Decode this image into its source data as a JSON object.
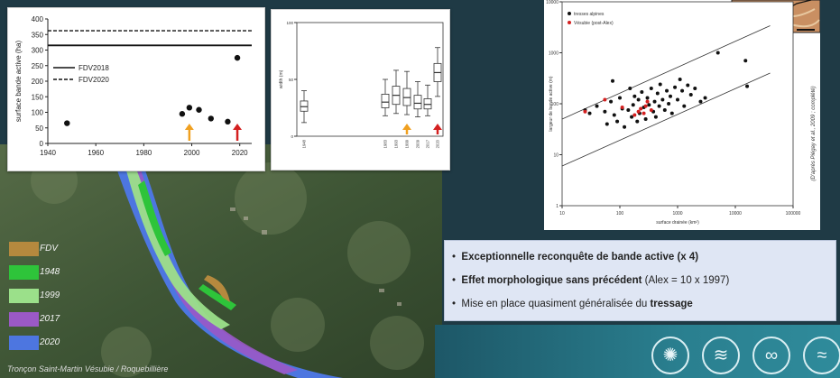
{
  "chart_data": [
    {
      "type": "scatter",
      "ylabel": "surface bande active (ha)",
      "xlim": [
        1940,
        2025
      ],
      "ylim": [
        0,
        400
      ],
      "xticks": [
        1940,
        1960,
        1980,
        2000,
        2020
      ],
      "yticks": [
        0,
        50,
        100,
        150,
        200,
        250,
        300,
        350,
        400
      ],
      "grid": false,
      "legend_position": "left",
      "reference_lines": [
        {
          "name": "FDV2018",
          "y": 315,
          "style": "solid"
        },
        {
          "name": "FDV2020",
          "y": 362,
          "style": "dashed"
        }
      ],
      "points": [
        {
          "x": 1948,
          "y": 65
        },
        {
          "x": 1996,
          "y": 95
        },
        {
          "x": 1999,
          "y": 115
        },
        {
          "x": 2003,
          "y": 108
        },
        {
          "x": 2008,
          "y": 80
        },
        {
          "x": 2015,
          "y": 70
        },
        {
          "x": 2019,
          "y": 275
        }
      ],
      "arrows": [
        {
          "x": 1999,
          "color": "#f0a020"
        },
        {
          "x": 2019,
          "color": "#d42020"
        }
      ]
    },
    {
      "type": "box",
      "ylabel": "width (m)",
      "categories": [
        "1948",
        "1983",
        "1993",
        "1999",
        "2009",
        "2017",
        "2020"
      ],
      "box_stats": [
        {
          "min": 12,
          "q1": 22,
          "median": 26,
          "q3": 31,
          "max": 40
        },
        {
          "min": 18,
          "q1": 25,
          "median": 30,
          "q3": 37,
          "max": 50
        },
        {
          "min": 20,
          "q1": 28,
          "median": 36,
          "q3": 44,
          "max": 58
        },
        {
          "min": 19,
          "q1": 27,
          "median": 34,
          "q3": 42,
          "max": 57
        },
        {
          "min": 17,
          "q1": 24,
          "median": 29,
          "q3": 36,
          "max": 48
        },
        {
          "min": 18,
          "q1": 24,
          "median": 28,
          "q3": 33,
          "max": 45
        },
        {
          "min": 35,
          "q1": 48,
          "median": 56,
          "q3": 64,
          "max": 78
        }
      ],
      "ylim": [
        0,
        100
      ],
      "yticks": [
        0,
        50,
        100
      ],
      "arrows": [
        {
          "category": "1999",
          "color": "#f0a020"
        },
        {
          "category": "2020",
          "color": "#d42020"
        }
      ]
    },
    {
      "type": "scatter",
      "xlabel": "surface drainée (km²)",
      "ylabel": "largeur de bande active (m)",
      "xscale": "log",
      "yscale": "log",
      "xlim": [
        10,
        100000
      ],
      "ylim": [
        1,
        10000
      ],
      "xticks": [
        10,
        100,
        1000,
        10000,
        100000
      ],
      "yticks": [
        1,
        10,
        100,
        1000,
        10000
      ],
      "legend_position": "top-left",
      "envelope_lines": [
        {
          "x": [
            10,
            40000
          ],
          "y": [
            50,
            3400
          ]
        },
        {
          "x": [
            10,
            40000
          ],
          "y": [
            6,
            400
          ]
        }
      ],
      "series": [
        {
          "name": "tresses alpines",
          "color": "#111111",
          "points": [
            [
              25,
              75
            ],
            [
              30,
              65
            ],
            [
              40,
              90
            ],
            [
              55,
              70
            ],
            [
              60,
              40
            ],
            [
              70,
              110
            ],
            [
              75,
              280
            ],
            [
              80,
              60
            ],
            [
              90,
              45
            ],
            [
              100,
              130
            ],
            [
              110,
              80
            ],
            [
              120,
              35
            ],
            [
              140,
              75
            ],
            [
              150,
              200
            ],
            [
              160,
              55
            ],
            [
              170,
              95
            ],
            [
              180,
              140
            ],
            [
              200,
              45
            ],
            [
              210,
              120
            ],
            [
              220,
              65
            ],
            [
              240,
              170
            ],
            [
              260,
              85
            ],
            [
              280,
              50
            ],
            [
              300,
              130
            ],
            [
              320,
              95
            ],
            [
              350,
              200
            ],
            [
              380,
              70
            ],
            [
              400,
              110
            ],
            [
              420,
              55
            ],
            [
              450,
              160
            ],
            [
              480,
              90
            ],
            [
              500,
              240
            ],
            [
              550,
              120
            ],
            [
              600,
              75
            ],
            [
              650,
              180
            ],
            [
              700,
              100
            ],
            [
              750,
              140
            ],
            [
              800,
              65
            ],
            [
              900,
              210
            ],
            [
              1000,
              120
            ],
            [
              1100,
              300
            ],
            [
              1200,
              180
            ],
            [
              1300,
              90
            ],
            [
              1500,
              230
            ],
            [
              1700,
              150
            ],
            [
              2000,
              200
            ],
            [
              2500,
              110
            ],
            [
              3000,
              130
            ],
            [
              5000,
              1000
            ],
            [
              15000,
              700
            ],
            [
              16000,
              220
            ]
          ]
        },
        {
          "name": "Vésubie (post-Alex)",
          "color": "#d42020",
          "points": [
            [
              25,
              70
            ],
            [
              55,
              120
            ],
            [
              110,
              85
            ],
            [
              180,
              60
            ],
            [
              210,
              70
            ],
            [
              230,
              80
            ],
            [
              260,
              65
            ],
            [
              280,
              90
            ],
            [
              300,
              110
            ],
            [
              350,
              75
            ]
          ]
        }
      ]
    }
  ],
  "credit": "(D'après Piégay et al., 2009 ; complété)",
  "map": {
    "label": "A"
  },
  "legend": [
    {
      "label": "FDV",
      "color": "#b5893e"
    },
    {
      "label": "1948",
      "color": "#2ec43a"
    },
    {
      "label": "1999",
      "color": "#9be08a"
    },
    {
      "label": "2017",
      "color": "#9b59c6"
    },
    {
      "label": "2020",
      "color": "#4d76e0"
    }
  ],
  "caption": "Tronçon Saint-Martin Vésubie / Roquebillière",
  "bullets": [
    {
      "bold": "Exceptionnelle reconquête de bande active (x 4)",
      "rest": "",
      "lead": ""
    },
    {
      "bold": "Effet morphologique sans précédent",
      "rest": " (Alex = 10 x 1997)",
      "lead": ""
    },
    {
      "bold": "tressage",
      "rest": "",
      "lead": "Mise en place quasiment généralisée du "
    }
  ],
  "badges": [
    "snowflake-sun-icon",
    "wave-icon",
    "fish-icon",
    "hands-icon"
  ]
}
